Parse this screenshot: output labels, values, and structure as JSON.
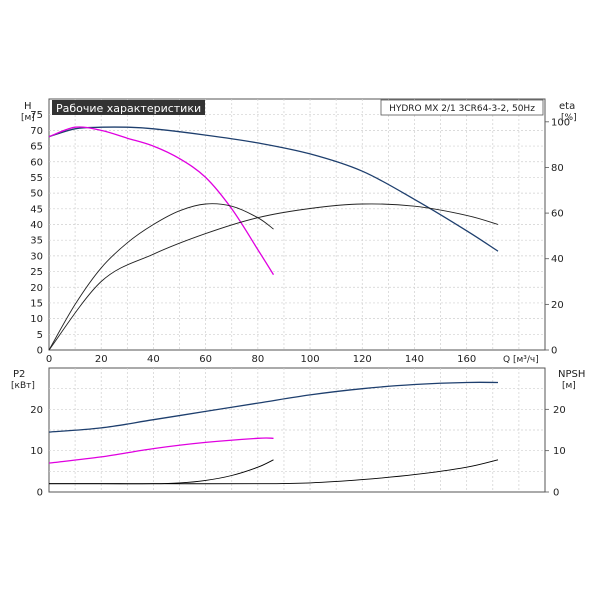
{
  "chart_data": [
    {
      "type": "line",
      "title": "Рабочие характеристики",
      "subtitle": "HYDRO MX 2/1 3CR64-3-2, 50Hz",
      "xlabel": "Q [м³/ч]",
      "ylabel_left": "H",
      "ylabel_left_unit": "[м]",
      "ylabel_right": "eta",
      "ylabel_right_unit": "[%]",
      "xlim": [
        0,
        190
      ],
      "ylim": [
        0,
        80
      ],
      "ylim_right": [
        0,
        110
      ],
      "x_ticks": [
        "0",
        "20",
        "40",
        "60",
        "80",
        "100",
        "120",
        "140",
        "160"
      ],
      "y_ticks": [
        "0",
        "5",
        "10",
        "15",
        "20",
        "25",
        "30",
        "35",
        "40",
        "45",
        "50",
        "55",
        "60",
        "65",
        "70",
        "75"
      ],
      "y_ticks_right": [
        "0",
        "20",
        "40",
        "60",
        "80",
        "100"
      ],
      "grid": true,
      "series": [
        {
          "color": "#1e3f6e",
          "axis": "left",
          "x": [
            0,
            10,
            20,
            30,
            40,
            60,
            80,
            100,
            120,
            140,
            160,
            172
          ],
          "y": [
            68,
            70.5,
            71,
            71,
            70.5,
            68.5,
            66,
            62.5,
            57,
            48,
            38,
            31.5
          ]
        },
        {
          "color": "#e000e0",
          "axis": "left",
          "x": [
            0,
            10,
            20,
            30,
            40,
            50,
            60,
            70,
            80,
            86
          ],
          "y": [
            68,
            71,
            70,
            67.5,
            65,
            61,
            55,
            45,
            32,
            24
          ]
        },
        {
          "color": "#222222",
          "axis": "right",
          "x": [
            0,
            20,
            40,
            60,
            80,
            100,
            120,
            140,
            160,
            172
          ],
          "y": [
            0,
            30,
            42,
            51,
            58,
            62,
            64,
            63,
            59,
            55
          ]
        },
        {
          "color": "#222222",
          "axis": "right",
          "x": [
            0,
            10,
            20,
            30,
            40,
            50,
            60,
            70,
            80,
            86
          ],
          "y": [
            0,
            20,
            36,
            47,
            55,
            61,
            64,
            63,
            58,
            53
          ]
        }
      ]
    },
    {
      "type": "line",
      "ylabel_left": "P2",
      "ylabel_left_unit": "[кВт]",
      "ylabel_right": "NPSH",
      "ylabel_right_unit": "[м]",
      "xlim": [
        0,
        190
      ],
      "ylim": [
        0,
        30
      ],
      "ylim_right": [
        0,
        30
      ],
      "y_ticks": [
        "0",
        "10",
        "20"
      ],
      "y_ticks_right": [
        "0",
        "10",
        "20"
      ],
      "grid": true,
      "series": [
        {
          "color": "#1e3f6e",
          "axis": "left",
          "x": [
            0,
            20,
            40,
            60,
            80,
            100,
            120,
            140,
            160,
            172
          ],
          "y": [
            14.5,
            15.5,
            17.5,
            19.5,
            21.5,
            23.5,
            25,
            26,
            26.5,
            26.5
          ]
        },
        {
          "color": "#e000e0",
          "axis": "left",
          "x": [
            0,
            20,
            40,
            60,
            80,
            86
          ],
          "y": [
            7,
            8.5,
            10.5,
            12,
            13,
            13
          ]
        },
        {
          "color": "#000000",
          "axis": "right",
          "x": [
            0,
            20,
            40,
            50,
            60,
            70,
            80,
            86
          ],
          "y": [
            2,
            2,
            2,
            2.2,
            2.8,
            4,
            6,
            7.8
          ]
        },
        {
          "color": "#000000",
          "axis": "right",
          "x": [
            0,
            40,
            80,
            100,
            120,
            140,
            160,
            172
          ],
          "y": [
            2,
            2,
            2,
            2.2,
            3,
            4.2,
            6,
            7.8
          ]
        }
      ]
    }
  ]
}
